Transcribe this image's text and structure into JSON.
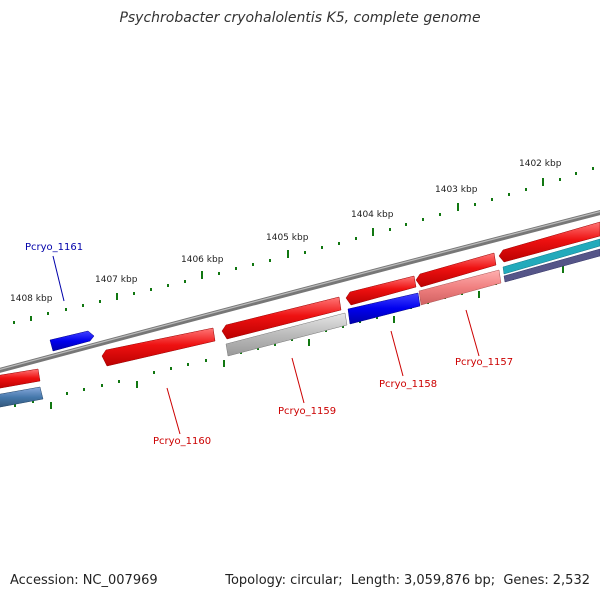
{
  "title": "Psychrobacter cryohalolentis K5, complete genome",
  "accession_label": "Accession:",
  "accession": "NC_007969",
  "topology_label": "Topology:",
  "topology": "circular",
  "length_label": "Length:",
  "length": "3,059,876 bp",
  "genes_label": "Genes:",
  "genes": "2,532",
  "scale_labels": [
    "1408 kbp",
    "1407 kbp",
    "1406 kbp",
    "1405 kbp",
    "1404 kbp",
    "1403 kbp",
    "1402 kbp"
  ],
  "gene_labels": [
    {
      "name": "Pcryo_1161",
      "color": "#0000aa"
    },
    {
      "name": "Pcryo_1160",
      "color": "#cc0000"
    },
    {
      "name": "Pcryo_1159",
      "color": "#cc0000"
    },
    {
      "name": "Pcryo_1158",
      "color": "#cc0000"
    },
    {
      "name": "Pcryo_1157",
      "color": "#cc0000"
    }
  ],
  "colors": {
    "forward_gene": "#ee1111",
    "highlight_gene": "#0000ee",
    "pseudo_gene": "#bbbbbb",
    "faded_gene": "#f08080",
    "backbone": "#888888",
    "tick": "#117711",
    "teal_gene": "#22aabb",
    "steel_gene": "#4477aa",
    "purple_gene": "#555588"
  }
}
